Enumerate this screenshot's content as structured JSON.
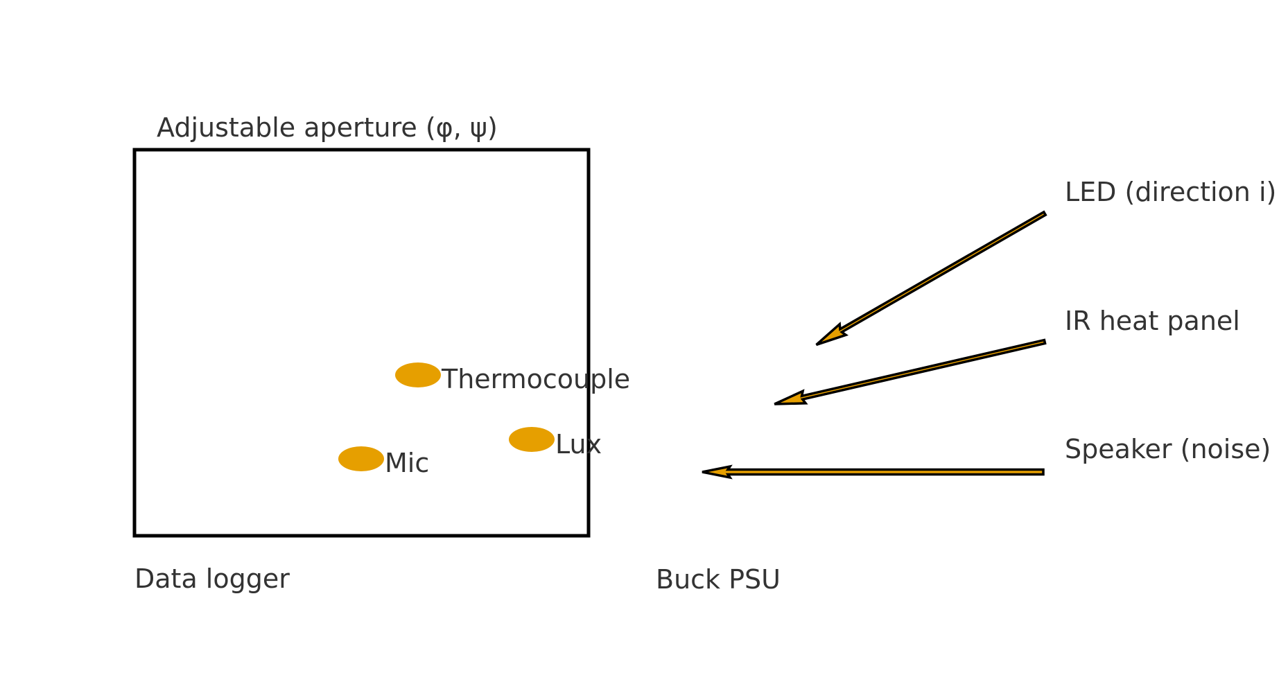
{
  "colors": {
    "accent": "#E69F00",
    "outline": "#000000",
    "text": "#333333",
    "background": "#ffffff"
  },
  "diagram": {
    "enclosure": {
      "title": "Adjustable aperture (φ, ψ)",
      "caption": "Data logger"
    },
    "sensors": [
      {
        "label": "Thermocouple"
      },
      {
        "label": "Lux"
      },
      {
        "label": "Mic"
      }
    ],
    "sources": [
      {
        "label": "LED (direction i)"
      },
      {
        "label": "IR heat panel"
      },
      {
        "label": "Speaker (noise)"
      }
    ],
    "supply_label": "Buck PSU"
  }
}
